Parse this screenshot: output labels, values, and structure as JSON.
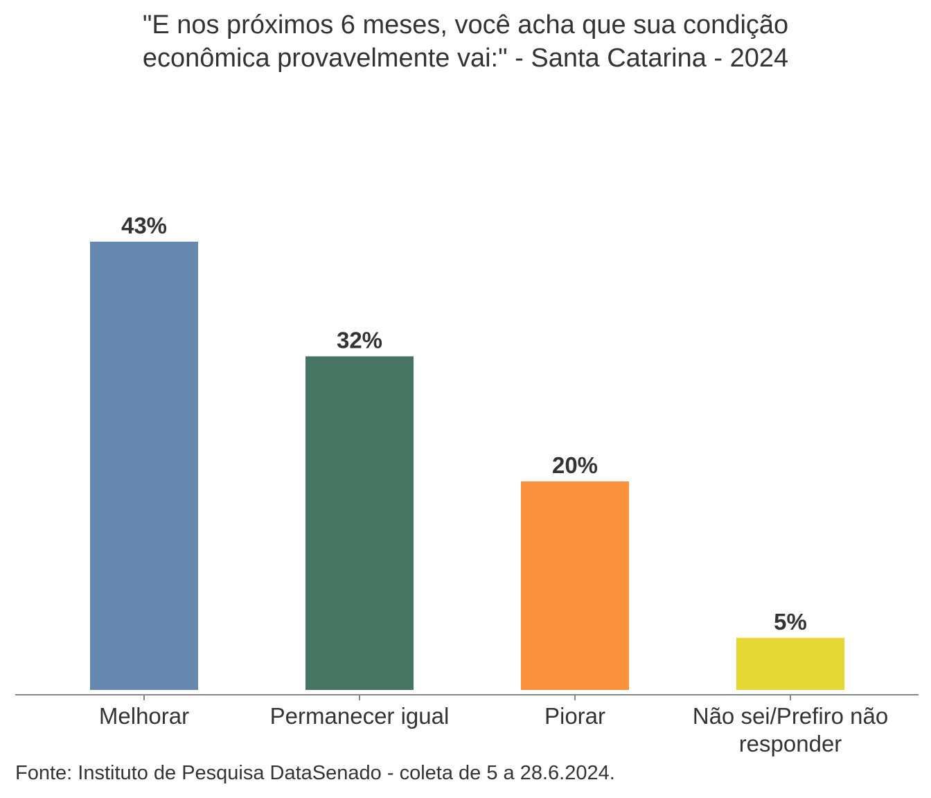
{
  "chart_data": {
    "type": "bar",
    "title_lines": [
      "\"E nos próximos 6 meses, você acha que sua condição",
      "econômica provavelmente vai:\" - Santa Catarina - 2024"
    ],
    "categories": [
      "Melhorar",
      "Permanecer igual",
      "Piorar",
      "Não sei/Prefiro não responder"
    ],
    "category_lines": [
      [
        "Melhorar"
      ],
      [
        "Permanecer igual"
      ],
      [
        "Piorar"
      ],
      [
        "Não sei/Prefiro não",
        "responder"
      ]
    ],
    "values": [
      43,
      32,
      20,
      5
    ],
    "value_labels": [
      "43%",
      "32%",
      "20%",
      "5%"
    ],
    "colors": [
      "#6688b0",
      "#467563",
      "#fa913c",
      "#e5d836"
    ],
    "xlabel": "",
    "ylabel": "",
    "ylim": [
      0,
      50
    ],
    "grid": false,
    "source": "Fonte: Instituto de Pesquisa DataSenado - coleta de 5 a 28.6.2024."
  }
}
